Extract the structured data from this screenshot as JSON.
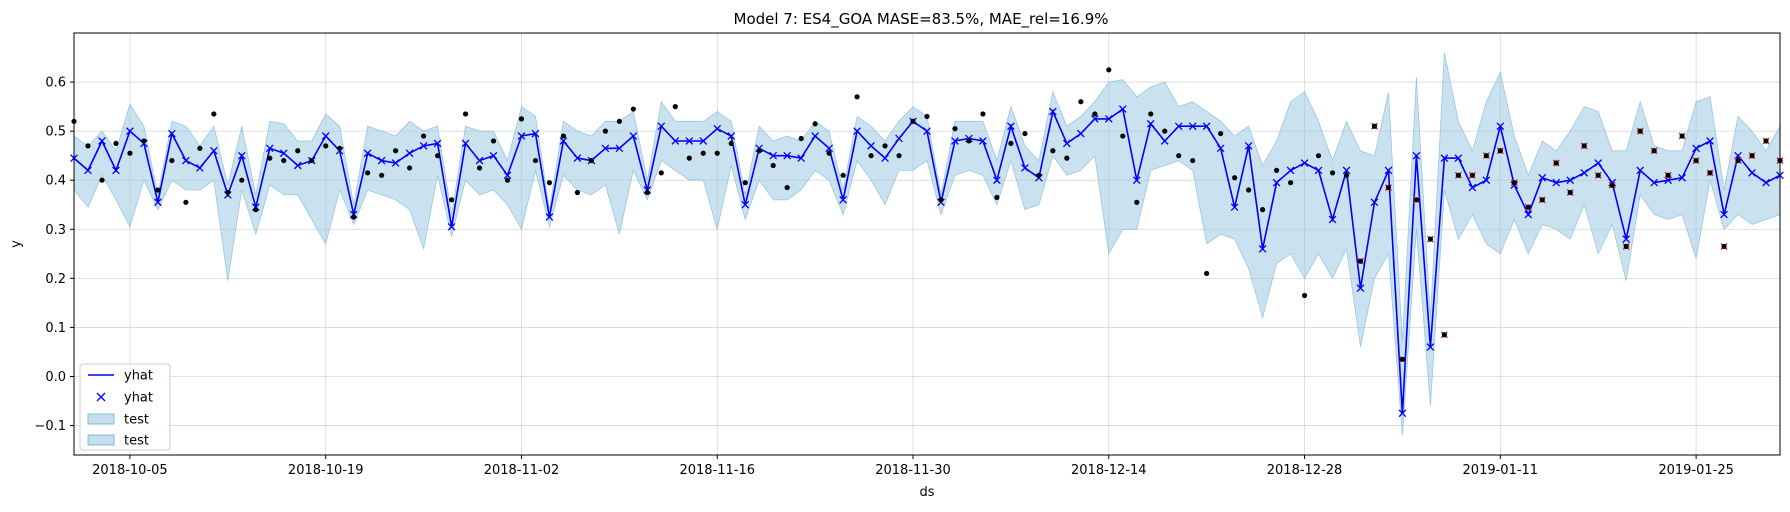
{
  "chart_data": {
    "type": "line",
    "title": "Model 7: ES4_GOA MASE=83.5%, MAE_rel=16.9%",
    "xlabel": "ds",
    "ylabel": "y",
    "start_date": "2018-10-01",
    "xlim_days": [
      0,
      122
    ],
    "ylim": [
      -0.16,
      0.7
    ],
    "y_ticks": [
      -0.1,
      0.0,
      0.1,
      0.2,
      0.3,
      0.4,
      0.5,
      0.6
    ],
    "x_ticks": [
      {
        "day": 4,
        "label": "2018-10-05"
      },
      {
        "day": 18,
        "label": "2018-10-19"
      },
      {
        "day": 32,
        "label": "2018-11-02"
      },
      {
        "day": 46,
        "label": "2018-11-16"
      },
      {
        "day": 60,
        "label": "2018-11-30"
      },
      {
        "day": 74,
        "label": "2018-12-14"
      },
      {
        "day": 88,
        "label": "2018-12-28"
      },
      {
        "day": 102,
        "label": "2019-01-11"
      },
      {
        "day": 116,
        "label": "2019-01-25"
      }
    ],
    "grid": true,
    "legend": {
      "placement": "lower-left",
      "entries": [
        "yhat",
        "yhat",
        "test",
        "test"
      ]
    },
    "colors": {
      "line": "#0000ff",
      "band": "#9ecae1",
      "band_edge": "#6baed6",
      "actual": "#000000",
      "test_marker": "#d62728"
    },
    "train_end_day": 92,
    "yhat": [
      0.445,
      0.42,
      0.48,
      0.42,
      0.5,
      0.475,
      0.355,
      0.495,
      0.44,
      0.425,
      0.46,
      0.37,
      0.45,
      0.345,
      0.465,
      0.455,
      0.43,
      0.44,
      0.49,
      0.46,
      0.33,
      0.455,
      0.44,
      0.435,
      0.455,
      0.47,
      0.475,
      0.305,
      0.475,
      0.44,
      0.45,
      0.41,
      0.49,
      0.495,
      0.325,
      0.48,
      0.445,
      0.44,
      0.465,
      0.465,
      0.49,
      0.38,
      0.51,
      0.48,
      0.48,
      0.48,
      0.505,
      0.49,
      0.35,
      0.465,
      0.45,
      0.45,
      0.445,
      0.49,
      0.465,
      0.36,
      0.5,
      0.47,
      0.445,
      0.485,
      0.52,
      0.5,
      0.355,
      0.48,
      0.485,
      0.48,
      0.4,
      0.51,
      0.425,
      0.405,
      0.54,
      0.475,
      0.495,
      0.525,
      0.525,
      0.545,
      0.4,
      0.515,
      0.48,
      0.51,
      0.51,
      0.51,
      0.465,
      0.345,
      0.47,
      0.26,
      0.395,
      0.42,
      0.435,
      0.42,
      0.32,
      0.42,
      0.18,
      0.355,
      0.42,
      -0.075,
      0.45,
      0.06,
      0.445,
      0.445,
      0.385,
      0.4,
      0.51,
      0.39,
      0.33,
      0.405,
      0.395,
      0.4,
      0.415,
      0.435,
      0.395,
      0.28,
      0.42,
      0.395,
      0.4,
      0.405,
      0.465,
      0.48,
      0.33,
      0.45,
      0.415,
      0.395,
      0.41
    ],
    "lower": [
      0.38,
      0.345,
      0.41,
      0.36,
      0.305,
      0.4,
      0.34,
      0.4,
      0.38,
      0.38,
      0.4,
      0.195,
      0.38,
      0.29,
      0.39,
      0.37,
      0.37,
      0.32,
      0.27,
      0.38,
      0.31,
      0.38,
      0.37,
      0.36,
      0.34,
      0.26,
      0.41,
      0.285,
      0.4,
      0.37,
      0.38,
      0.35,
      0.3,
      0.42,
      0.305,
      0.41,
      0.38,
      0.37,
      0.39,
      0.29,
      0.42,
      0.36,
      0.44,
      0.42,
      0.4,
      0.4,
      0.3,
      0.43,
      0.32,
      0.4,
      0.36,
      0.36,
      0.38,
      0.42,
      0.4,
      0.33,
      0.44,
      0.4,
      0.35,
      0.42,
      0.42,
      0.44,
      0.33,
      0.41,
      0.42,
      0.41,
      0.35,
      0.44,
      0.34,
      0.35,
      0.45,
      0.41,
      0.42,
      0.45,
      0.25,
      0.3,
      0.3,
      0.42,
      0.43,
      0.44,
      0.42,
      0.27,
      0.29,
      0.28,
      0.22,
      0.12,
      0.23,
      0.25,
      0.2,
      0.25,
      0.2,
      0.26,
      0.06,
      0.2,
      0.25,
      -0.12,
      0.3,
      -0.06,
      0.38,
      0.28,
      0.33,
      0.27,
      0.25,
      0.32,
      0.25,
      0.31,
      0.3,
      0.28,
      0.35,
      0.25,
      0.31,
      0.195,
      0.37,
      0.33,
      0.32,
      0.33,
      0.24,
      0.4,
      0.3,
      0.33,
      0.31,
      0.32,
      0.33
    ],
    "upper": [
      0.49,
      0.47,
      0.5,
      0.46,
      0.555,
      0.51,
      0.37,
      0.52,
      0.51,
      0.47,
      0.51,
      0.39,
      0.51,
      0.37,
      0.52,
      0.515,
      0.48,
      0.48,
      0.535,
      0.51,
      0.35,
      0.51,
      0.5,
      0.49,
      0.52,
      0.5,
      0.51,
      0.33,
      0.51,
      0.5,
      0.5,
      0.44,
      0.55,
      0.53,
      0.34,
      0.52,
      0.5,
      0.49,
      0.52,
      0.52,
      0.54,
      0.4,
      0.56,
      0.52,
      0.52,
      0.52,
      0.54,
      0.52,
      0.37,
      0.51,
      0.48,
      0.49,
      0.48,
      0.52,
      0.5,
      0.38,
      0.53,
      0.51,
      0.48,
      0.52,
      0.55,
      0.53,
      0.37,
      0.52,
      0.52,
      0.52,
      0.44,
      0.55,
      0.47,
      0.44,
      0.58,
      0.51,
      0.53,
      0.56,
      0.6,
      0.605,
      0.57,
      0.59,
      0.6,
      0.55,
      0.56,
      0.54,
      0.52,
      0.49,
      0.51,
      0.43,
      0.48,
      0.56,
      0.58,
      0.52,
      0.44,
      0.52,
      0.46,
      0.45,
      0.58,
      0.07,
      0.61,
      0.12,
      0.66,
      0.52,
      0.46,
      0.56,
      0.62,
      0.49,
      0.41,
      0.48,
      0.46,
      0.5,
      0.55,
      0.54,
      0.46,
      0.46,
      0.56,
      0.47,
      0.46,
      0.46,
      0.56,
      0.57,
      0.38,
      0.53,
      0.5,
      0.46,
      0.51
    ],
    "actual": [
      0.52,
      0.47,
      0.4,
      0.475,
      0.455,
      0.48,
      0.38,
      0.44,
      0.355,
      0.465,
      0.535,
      0.375,
      0.4,
      0.34,
      0.445,
      0.44,
      0.46,
      0.44,
      0.47,
      0.465,
      0.325,
      0.415,
      0.41,
      0.46,
      0.425,
      0.49,
      0.45,
      0.36,
      0.535,
      0.425,
      0.48,
      0.4,
      0.525,
      0.44,
      0.395,
      0.49,
      0.375,
      0.44,
      0.5,
      0.52,
      0.545,
      0.375,
      0.415,
      0.55,
      0.445,
      0.455,
      0.455,
      0.475,
      0.395,
      0.46,
      0.43,
      0.385,
      0.485,
      0.515,
      0.455,
      0.41,
      0.57,
      0.45,
      0.47,
      0.45,
      0.52,
      0.53,
      0.36,
      0.505,
      0.48,
      0.535,
      0.365,
      0.475,
      0.495,
      0.41,
      0.46,
      0.445,
      0.56,
      0.535,
      0.625,
      0.49,
      0.355,
      0.535,
      0.5,
      0.45,
      0.44,
      0.21,
      0.495,
      0.405,
      0.38,
      0.34,
      0.42,
      0.395,
      0.165,
      0.45,
      0.415,
      0.41,
      0.235,
      0.51,
      0.385,
      0.035,
      0.36,
      0.28,
      0.085,
      0.41,
      0.41,
      0.45,
      0.46,
      0.395,
      0.345,
      0.36,
      0.435,
      0.375,
      0.47,
      0.41,
      0.39,
      0.265,
      0.5,
      0.46,
      0.41,
      0.49,
      0.44,
      0.415,
      0.265,
      0.44,
      0.45,
      0.48,
      0.44
    ]
  }
}
